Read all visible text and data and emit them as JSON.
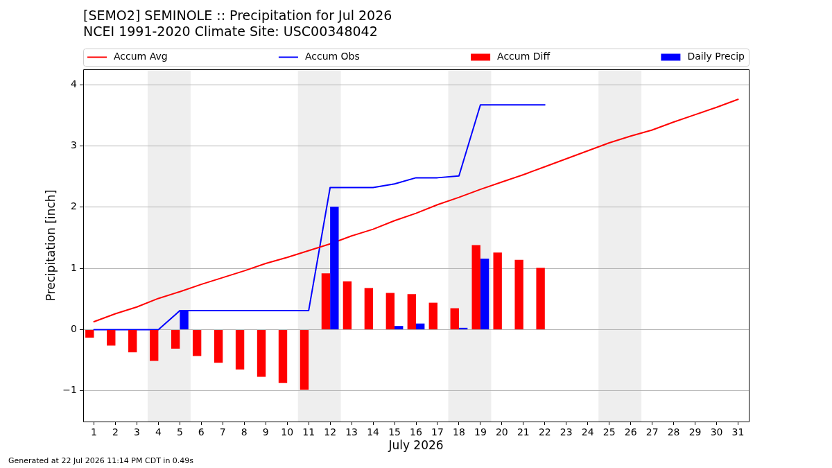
{
  "chart_data": {
    "type": "bar",
    "title": "[SEMO2] SEMINOLE :: Precipitation for Jul 2026",
    "subtitle": "NCEI 1991-2020 Climate Site: USC00348042",
    "xlabel": "July 2026",
    "ylabel": "Precipitation [inch]",
    "x": [
      1,
      2,
      3,
      4,
      5,
      6,
      7,
      8,
      9,
      10,
      11,
      12,
      13,
      14,
      15,
      16,
      17,
      18,
      19,
      20,
      21,
      22,
      23,
      24,
      25,
      26,
      27,
      28,
      29,
      30,
      31
    ],
    "series": [
      {
        "name": "Accum Avg",
        "type": "line",
        "color": "#ff0000",
        "values": [
          0.13,
          0.26,
          0.37,
          0.51,
          0.62,
          0.74,
          0.85,
          0.96,
          1.08,
          1.18,
          1.29,
          1.4,
          1.53,
          1.64,
          1.78,
          1.9,
          2.04,
          2.16,
          2.29,
          2.41,
          2.53,
          2.66,
          2.79,
          2.92,
          3.05,
          3.16,
          3.26,
          3.39,
          3.51,
          3.63,
          3.76
        ]
      },
      {
        "name": "Accum Obs",
        "type": "line",
        "color": "#0000ff",
        "values": [
          0,
          0,
          0,
          0,
          0.31,
          0.31,
          0.31,
          0.31,
          0.31,
          0.31,
          0.31,
          2.32,
          2.32,
          2.32,
          2.38,
          2.48,
          2.48,
          2.51,
          3.67,
          3.67,
          3.67,
          3.67,
          null,
          null,
          null,
          null,
          null,
          null,
          null,
          null,
          null
        ]
      },
      {
        "name": "Accum Diff",
        "color": "#ff0000",
        "values": [
          -0.13,
          -0.26,
          -0.37,
          -0.51,
          -0.31,
          -0.43,
          -0.54,
          -0.65,
          -0.77,
          -0.87,
          -0.98,
          0.92,
          0.79,
          0.68,
          0.6,
          0.58,
          0.44,
          0.35,
          1.38,
          1.26,
          1.14,
          1.01,
          null,
          null,
          null,
          null,
          null,
          null,
          null,
          null,
          null
        ]
      },
      {
        "name": "Daily Precip",
        "color": "#0000ff",
        "values": [
          0,
          0,
          0,
          0,
          0.31,
          0,
          0,
          0,
          0,
          0,
          0,
          2.01,
          0,
          0,
          0.06,
          0.1,
          0,
          0.03,
          1.16,
          0,
          0,
          0,
          null,
          null,
          null,
          null,
          null,
          null,
          null,
          null,
          null
        ]
      }
    ],
    "xlim": [
      0.5,
      31.5
    ],
    "xticks": [
      1,
      2,
      3,
      4,
      5,
      6,
      7,
      8,
      9,
      10,
      11,
      12,
      13,
      14,
      15,
      16,
      17,
      18,
      19,
      20,
      21,
      22,
      23,
      24,
      25,
      26,
      27,
      28,
      29,
      30,
      31
    ],
    "ylim": [
      -1.5,
      4.25
    ],
    "yticks": [
      {
        "value": -1,
        "label": "−1"
      },
      0,
      1,
      2,
      3,
      4
    ],
    "bands": [
      {
        "axis": "x",
        "from": 3.5,
        "to": 5.5,
        "color": "#eeeeee"
      },
      {
        "axis": "x",
        "from": 10.5,
        "to": 12.5,
        "color": "#eeeeee"
      },
      {
        "axis": "x",
        "from": 17.5,
        "to": 19.5,
        "color": "#eeeeee"
      },
      {
        "axis": "x",
        "from": 24.5,
        "to": 26.5,
        "color": "#eeeeee"
      }
    ],
    "grid": "y",
    "legend": "top",
    "annotations": [
      "Generated at 22 Jul 2026 11:14 PM CDT in 0.49s"
    ]
  }
}
